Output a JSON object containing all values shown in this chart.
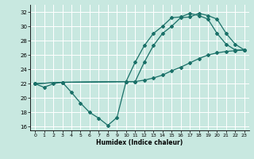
{
  "xlabel": "Humidex (Indice chaleur)",
  "xlim": [
    -0.5,
    23.5
  ],
  "ylim": [
    15.5,
    33.0
  ],
  "yticks": [
    16,
    18,
    20,
    22,
    24,
    26,
    28,
    30,
    32
  ],
  "xticks": [
    0,
    1,
    2,
    3,
    4,
    5,
    6,
    7,
    8,
    9,
    10,
    11,
    12,
    13,
    14,
    15,
    16,
    17,
    18,
    19,
    20,
    21,
    22,
    23
  ],
  "bg_color": "#c8e8e0",
  "line_color": "#1a7068",
  "grid_color": "#ffffff",
  "line1_x": [
    0,
    1,
    2,
    3,
    4,
    5,
    6,
    7,
    8,
    9,
    10,
    11,
    12,
    13,
    14,
    15,
    16,
    17,
    18,
    19,
    20,
    21,
    22,
    23
  ],
  "line1_y": [
    22,
    21.5,
    22,
    22.2,
    20.8,
    19.3,
    18.0,
    17.2,
    16.2,
    17.3,
    22.3,
    22.3,
    25.0,
    27.3,
    29.0,
    30.0,
    31.2,
    31.3,
    31.8,
    31.5,
    31.0,
    29.0,
    27.5,
    26.7
  ],
  "line2_x": [
    0,
    3,
    10,
    11,
    12,
    13,
    14,
    15,
    16,
    17,
    18,
    19,
    20,
    21,
    22,
    23
  ],
  "line2_y": [
    22,
    22.2,
    22.3,
    25.0,
    27.3,
    29.0,
    30.0,
    31.2,
    31.3,
    31.8,
    31.5,
    31.0,
    29.0,
    27.5,
    26.7,
    26.7
  ],
  "line3_x": [
    0,
    3,
    10,
    11,
    12,
    13,
    14,
    15,
    16,
    17,
    18,
    19,
    20,
    21,
    22,
    23
  ],
  "line3_y": [
    22,
    22.2,
    22.3,
    22.3,
    22.5,
    22.8,
    23.2,
    23.8,
    24.3,
    24.9,
    25.5,
    26.0,
    26.3,
    26.5,
    26.6,
    26.7
  ]
}
